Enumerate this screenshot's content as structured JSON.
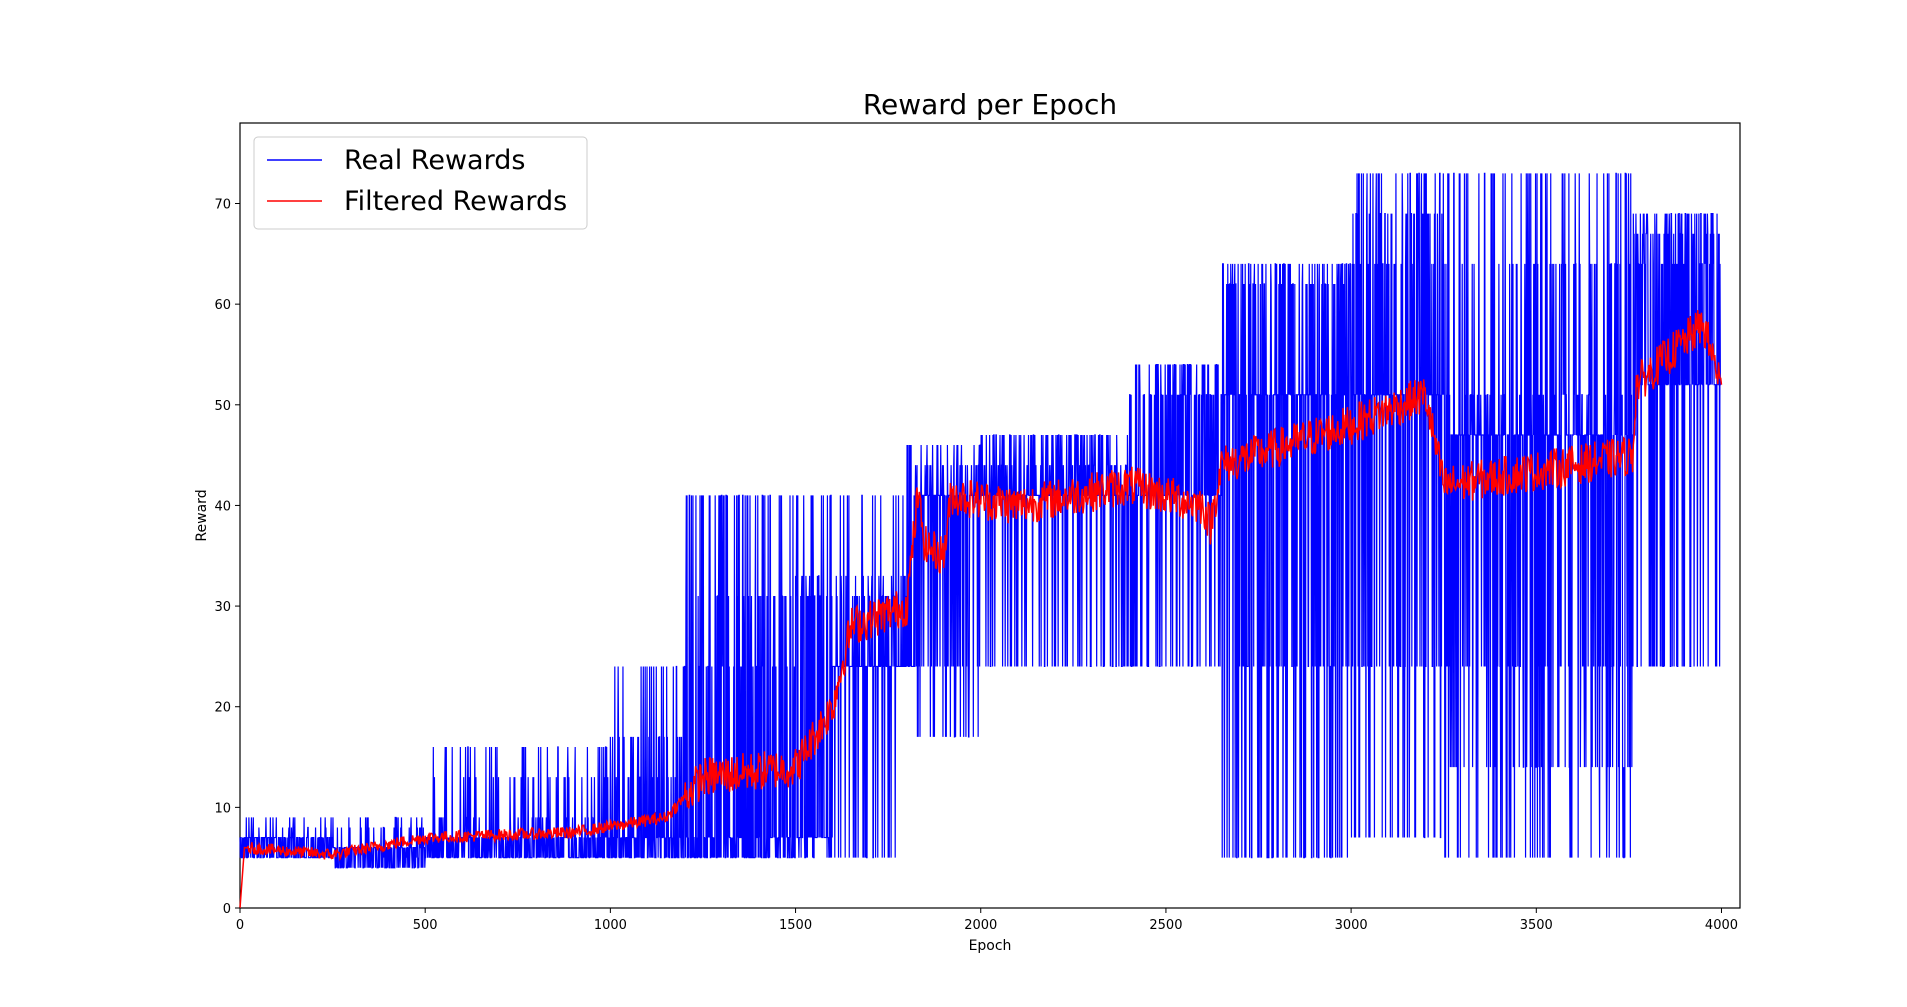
{
  "chart_data": {
    "type": "line",
    "title": "Reward per Epoch",
    "xlabel": "Epoch",
    "ylabel": "Reward",
    "xlim": [
      0,
      4050
    ],
    "ylim": [
      0,
      78
    ],
    "xticks": [
      0,
      500,
      1000,
      1500,
      2000,
      2500,
      3000,
      3500,
      4000
    ],
    "yticks": [
      0,
      10,
      20,
      30,
      40,
      50,
      60,
      70
    ],
    "grid": false,
    "legend_position": "top-left",
    "series": [
      {
        "name": "Real Rewards",
        "color": "#0000ff",
        "style": "noisy-step",
        "n_points": 4000,
        "baseline": [
          [
            0,
            7
          ],
          [
            250,
            6
          ],
          [
            500,
            7
          ],
          [
            900,
            7
          ],
          [
            1150,
            7
          ],
          [
            1500,
            7
          ],
          [
            1600,
            24
          ],
          [
            1800,
            24
          ],
          [
            1820,
            41
          ],
          [
            2000,
            41
          ],
          [
            2400,
            41
          ],
          [
            2600,
            41
          ],
          [
            2650,
            51
          ],
          [
            3000,
            51
          ],
          [
            3200,
            51
          ],
          [
            3250,
            47
          ],
          [
            3600,
            47
          ],
          [
            3760,
            47
          ],
          [
            3770,
            52
          ],
          [
            4000,
            52
          ]
        ],
        "spike_levels": [
          [
            0,
            [
              5,
              8,
              9
            ]
          ],
          [
            500,
            [
              5,
              9,
              13,
              16
            ]
          ],
          [
            1000,
            [
              5,
              13,
              17,
              24
            ]
          ],
          [
            1200,
            [
              5,
              24,
              31,
              41
            ]
          ],
          [
            1500,
            [
              5,
              31,
              33,
              41
            ]
          ],
          [
            1800,
            [
              17,
              24,
              44,
              46
            ]
          ],
          [
            2000,
            [
              24,
              44,
              47
            ]
          ],
          [
            2400,
            [
              24,
              51,
              54
            ]
          ],
          [
            2650,
            [
              5,
              24,
              62,
              64
            ]
          ],
          [
            3000,
            [
              7,
              24,
              64,
              69,
              73
            ]
          ],
          [
            3250,
            [
              5,
              14,
              24,
              51,
              64,
              73
            ]
          ],
          [
            3760,
            [
              24,
              64,
              67,
              69
            ]
          ],
          [
            4000,
            [
              24,
              64
            ]
          ]
        ],
        "spike_rate": [
          [
            0,
            0.15
          ],
          [
            500,
            0.2
          ],
          [
            1000,
            0.3
          ],
          [
            1200,
            0.5
          ],
          [
            1800,
            0.4
          ],
          [
            2650,
            0.6
          ],
          [
            4000,
            0.6
          ]
        ],
        "peak": {
          "x": 3240,
          "y": 73
        }
      },
      {
        "name": "Filtered Rewards",
        "color": "#ff0000",
        "style": "smoothed",
        "start": {
          "x": 0,
          "y": 0
        },
        "trend": [
          [
            0,
            0
          ],
          [
            12,
            6
          ],
          [
            250,
            5.3
          ],
          [
            500,
            7
          ],
          [
            900,
            7.5
          ],
          [
            1150,
            9
          ],
          [
            1250,
            13
          ],
          [
            1500,
            14
          ],
          [
            1600,
            20
          ],
          [
            1650,
            28
          ],
          [
            1800,
            30
          ],
          [
            1830,
            41
          ],
          [
            1850,
            36
          ],
          [
            1900,
            35
          ],
          [
            1920,
            41
          ],
          [
            2100,
            40
          ],
          [
            2400,
            42
          ],
          [
            2600,
            40
          ],
          [
            2620,
            38
          ],
          [
            2650,
            44
          ],
          [
            3000,
            48
          ],
          [
            3200,
            51
          ],
          [
            3250,
            42
          ],
          [
            3600,
            44
          ],
          [
            3760,
            45
          ],
          [
            3770,
            52
          ],
          [
            3950,
            58
          ],
          [
            4000,
            52
          ]
        ],
        "end": {
          "x": 4000,
          "y": 52
        }
      }
    ]
  }
}
